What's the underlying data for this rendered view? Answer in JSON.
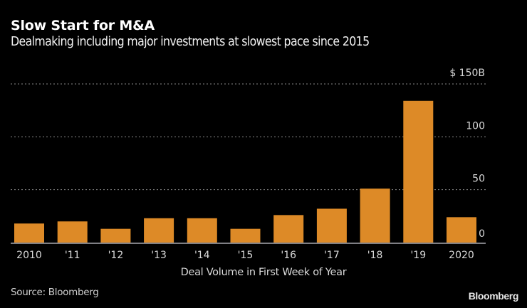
{
  "header": {
    "title": "Slow Start for M&A",
    "subtitle": "Dealmaking including major investments at slowest pace since 2015"
  },
  "footer": {
    "source": "Source: Bloomberg",
    "brand": "Bloomberg"
  },
  "colors": {
    "bar": "#dd8a27",
    "background": "#000000",
    "grid": "#8a8a8a",
    "axis": "#a9a9b0"
  },
  "chart_data": {
    "type": "bar",
    "title": "Slow Start for M&A",
    "subtitle": "Dealmaking including major investments at slowest pace since 2015",
    "xlabel": "Deal Volume in First Week of Year",
    "ylabel": "",
    "y_unit": "$ billions",
    "categories": [
      "2010",
      "'11",
      "'12",
      "'13",
      "'14",
      "'15",
      "'16",
      "'17",
      "'18",
      "'19",
      "2020"
    ],
    "values": [
      18,
      20,
      13,
      23,
      23,
      13,
      26,
      32,
      51,
      134,
      24
    ],
    "ylim": [
      0,
      150
    ],
    "yticks": [
      0,
      50,
      100,
      150
    ],
    "ytick_labels": [
      "0",
      "50",
      "100",
      "$ 150B"
    ],
    "y_axis_side": "right",
    "grid": true,
    "grid_style": "dotted horizontal",
    "legend": "none"
  }
}
